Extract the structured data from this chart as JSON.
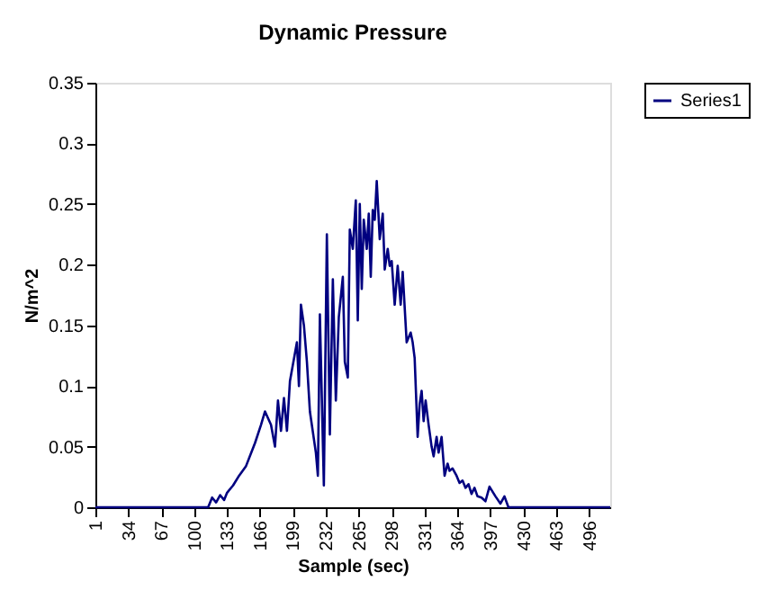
{
  "chart_data": {
    "type": "line",
    "title": "Dynamic Pressure",
    "xlabel": "Sample (sec)",
    "ylabel": "N/m^2",
    "x": [
      1,
      50,
      100,
      114,
      118,
      122,
      126,
      130,
      133,
      139,
      145,
      152,
      161,
      167,
      171,
      177,
      181,
      184,
      187,
      190,
      193,
      196,
      203,
      205,
      207,
      210,
      213,
      216,
      222,
      224,
      226,
      230,
      233,
      236,
      239,
      242,
      245,
      249,
      251,
      254,
      256,
      259,
      262,
      264,
      266,
      268,
      270,
      273,
      275,
      277,
      279,
      281,
      283,
      286,
      289,
      291,
      294,
      296,
      298,
      301,
      304,
      307,
      309,
      313,
      317,
      319,
      321,
      324,
      326,
      328,
      330,
      332,
      335,
      338,
      340,
      343,
      345,
      348,
      351,
      354,
      356,
      359,
      363,
      366,
      369,
      372,
      375,
      378,
      381,
      384,
      388,
      392,
      396,
      402,
      407,
      411,
      415,
      420,
      424,
      428,
      432,
      440,
      480,
      517
    ],
    "series": [
      {
        "name": "Series1",
        "color": "#000080",
        "values": [
          0,
          0,
          0,
          0,
          0.008,
          0.004,
          0.01,
          0.006,
          0.012,
          0.018,
          0.026,
          0.034,
          0.053,
          0.068,
          0.079,
          0.068,
          0.05,
          0.088,
          0.063,
          0.09,
          0.063,
          0.104,
          0.136,
          0.1,
          0.167,
          0.15,
          0.12,
          0.079,
          0.045,
          0.026,
          0.159,
          0.018,
          0.225,
          0.06,
          0.188,
          0.088,
          0.157,
          0.19,
          0.12,
          0.107,
          0.229,
          0.213,
          0.253,
          0.154,
          0.25,
          0.18,
          0.237,
          0.213,
          0.242,
          0.19,
          0.245,
          0.237,
          0.269,
          0.221,
          0.242,
          0.196,
          0.213,
          0.199,
          0.203,
          0.167,
          0.199,
          0.167,
          0.194,
          0.136,
          0.144,
          0.136,
          0.123,
          0.058,
          0.085,
          0.096,
          0.071,
          0.088,
          0.068,
          0.05,
          0.042,
          0.058,
          0.045,
          0.058,
          0.026,
          0.036,
          0.03,
          0.032,
          0.026,
          0.02,
          0.022,
          0.016,
          0.019,
          0.011,
          0.016,
          0.009,
          0.008,
          0.005,
          0.017,
          0.009,
          0.003,
          0.009,
          0,
          0,
          0,
          0,
          0,
          0,
          0,
          0
        ]
      }
    ],
    "xlim": [
      1,
      517
    ],
    "xticks": [
      1,
      34,
      67,
      100,
      133,
      166,
      199,
      232,
      265,
      298,
      331,
      364,
      397,
      430,
      463,
      496
    ],
    "ylim": [
      0,
      0.35
    ],
    "yticks": [
      0,
      0.05,
      0.1,
      0.15,
      0.2,
      0.25,
      0.3,
      0.35
    ],
    "grid": false,
    "legend": "right",
    "marker": "none",
    "line_style": "solid"
  }
}
